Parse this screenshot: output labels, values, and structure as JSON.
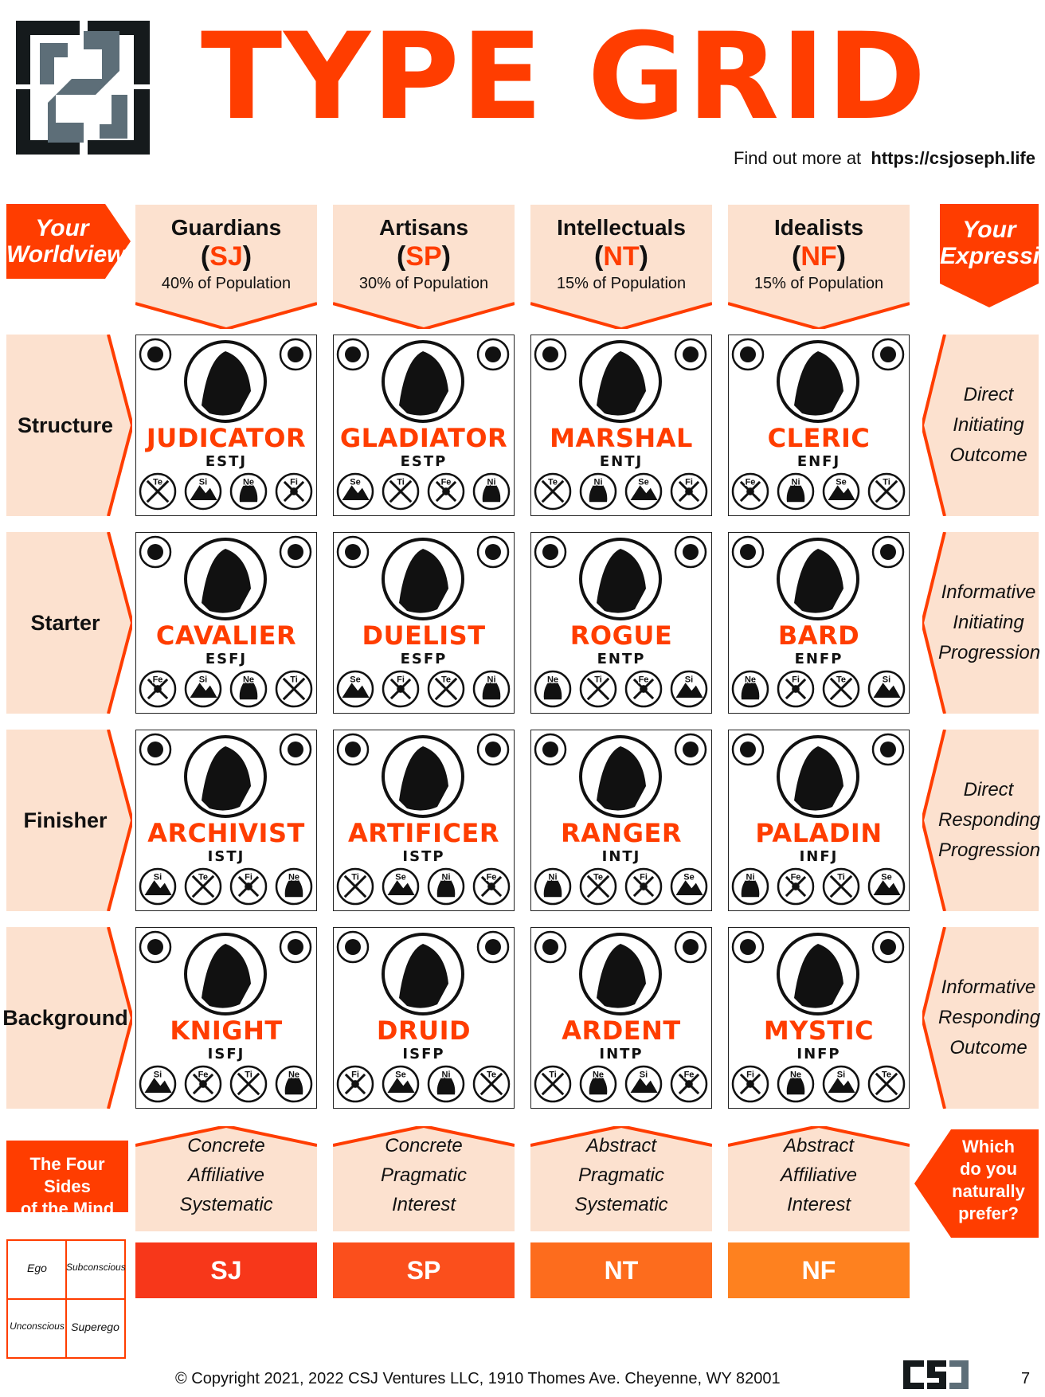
{
  "header": {
    "title": "TYPE GRID",
    "find_more_prefix": "Find out more at",
    "url": "https://csjoseph.life"
  },
  "left_arrow": {
    "line1": "Your",
    "line2": "Worldview"
  },
  "right_arrow": {
    "line1": "Your",
    "line2": "Expression"
  },
  "columns": [
    {
      "name": "Guardians",
      "code": "SJ",
      "population": "40% of Population",
      "attrs": [
        "Concrete",
        "Affiliative",
        "Systematic"
      ],
      "color": "#f7371a"
    },
    {
      "name": "Artisans",
      "code": "SP",
      "population": "30% of Population",
      "attrs": [
        "Concrete",
        "Pragmatic",
        "Interest"
      ],
      "color": "#fb4f1c"
    },
    {
      "name": "Intellectuals",
      "code": "NT",
      "population": "15% of Population",
      "attrs": [
        "Abstract",
        "Pragmatic",
        "Systematic"
      ],
      "color": "#fd6c1d"
    },
    {
      "name": "Idealists",
      "code": "NF",
      "population": "15% of Population",
      "attrs": [
        "Abstract",
        "Affiliative",
        "Interest"
      ],
      "color": "#fe811f"
    }
  ],
  "rows": [
    {
      "label": "Structure",
      "expression": [
        "Direct",
        "Initiating",
        "Outcome"
      ]
    },
    {
      "label": "Starter",
      "expression": [
        "Informative",
        "Initiating",
        "Progression"
      ]
    },
    {
      "label": "Finisher",
      "expression": [
        "Direct",
        "Responding",
        "Progression"
      ]
    },
    {
      "label": "Background",
      "expression": [
        "Informative",
        "Responding",
        "Outcome"
      ]
    }
  ],
  "cards": [
    [
      {
        "name": "JUDICATOR",
        "code": "ESTJ",
        "functions": [
          "Te",
          "Si",
          "Ne",
          "Fi"
        ]
      },
      {
        "name": "GLADIATOR",
        "code": "ESTP",
        "functions": [
          "Se",
          "Ti",
          "Fe",
          "Ni"
        ]
      },
      {
        "name": "MARSHAL",
        "code": "ENTJ",
        "functions": [
          "Te",
          "Ni",
          "Se",
          "Fi"
        ]
      },
      {
        "name": "CLERIC",
        "code": "ENFJ",
        "functions": [
          "Fe",
          "Ni",
          "Se",
          "Ti"
        ]
      }
    ],
    [
      {
        "name": "CAVALIER",
        "code": "ESFJ",
        "functions": [
          "Fe",
          "Si",
          "Ne",
          "Ti"
        ]
      },
      {
        "name": "DUELIST",
        "code": "ESFP",
        "functions": [
          "Se",
          "Fi",
          "Te",
          "Ni"
        ]
      },
      {
        "name": "ROGUE",
        "code": "ENTP",
        "functions": [
          "Ne",
          "Ti",
          "Fe",
          "Si"
        ]
      },
      {
        "name": "BARD",
        "code": "ENFP",
        "functions": [
          "Ne",
          "Fi",
          "Te",
          "Si"
        ]
      }
    ],
    [
      {
        "name": "ARCHIVIST",
        "code": "ISTJ",
        "functions": [
          "Si",
          "Te",
          "Fi",
          "Ne"
        ]
      },
      {
        "name": "ARTIFICER",
        "code": "ISTP",
        "functions": [
          "Ti",
          "Se",
          "Ni",
          "Fe"
        ]
      },
      {
        "name": "RANGER",
        "code": "INTJ",
        "functions": [
          "Ni",
          "Te",
          "Fi",
          "Se"
        ]
      },
      {
        "name": "PALADIN",
        "code": "INFJ",
        "functions": [
          "Ni",
          "Fe",
          "Ti",
          "Se"
        ]
      }
    ],
    [
      {
        "name": "KNIGHT",
        "code": "ISFJ",
        "functions": [
          "Si",
          "Fe",
          "Ti",
          "Ne"
        ]
      },
      {
        "name": "DRUID",
        "code": "ISFP",
        "functions": [
          "Fi",
          "Se",
          "Ni",
          "Te"
        ]
      },
      {
        "name": "ARDENT",
        "code": "INTP",
        "functions": [
          "Ti",
          "Ne",
          "Si",
          "Fe"
        ]
      },
      {
        "name": "MYSTIC",
        "code": "INFP",
        "functions": [
          "Fi",
          "Ne",
          "Si",
          "Te"
        ]
      }
    ]
  ],
  "four_sides": {
    "title_line1": "The Four Sides",
    "title_line2": "of the Mind",
    "ego": "Ego",
    "subconscious": "Subconscious",
    "unconscious": "Unconscious",
    "superego": "Superego"
  },
  "prefer": {
    "line1": "Which",
    "line2": "do you",
    "line3": "naturally",
    "line4": "prefer?"
  },
  "footer": {
    "copyright": "© Copyright 2021, 2022  CSJ Ventures LLC, 1910 Thomes Ave. Cheyenne, WY 82001",
    "page_number": "7"
  },
  "colors": {
    "accent": "#ff3d00",
    "peach": "#fce1cf",
    "logo_dark": "#151a1c",
    "logo_gray": "#5d6e78"
  }
}
